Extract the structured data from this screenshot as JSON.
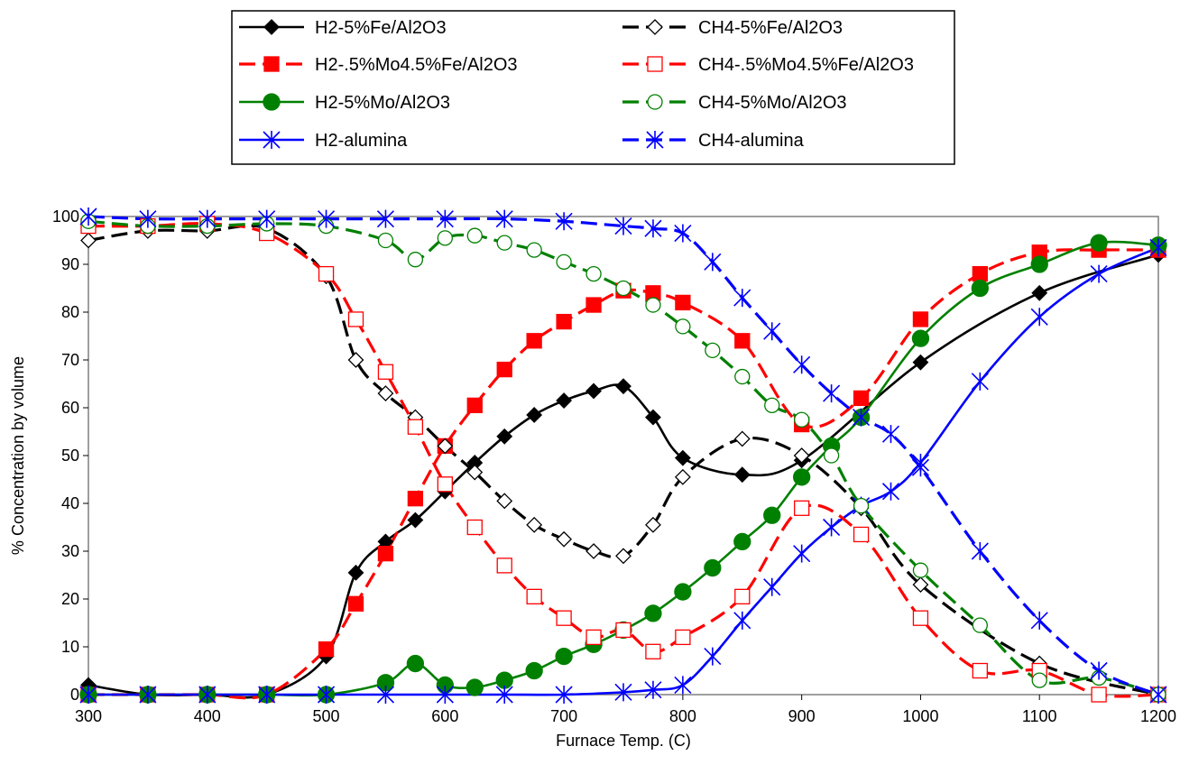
{
  "chart_data": {
    "type": "line",
    "title": "",
    "xlabel": "Furnace Temp. (C)",
    "ylabel": "% Concentration by volume",
    "xlim": [
      300,
      1200
    ],
    "ylim": [
      0,
      100
    ],
    "xticks": [
      300,
      400,
      500,
      600,
      700,
      800,
      900,
      1000,
      1100,
      1200
    ],
    "yticks": [
      0,
      10,
      20,
      30,
      40,
      50,
      60,
      70,
      80,
      90,
      100
    ],
    "grid": false,
    "legend_position": "top",
    "series": [
      {
        "name": "H2-5%Fe/Al2O3",
        "color": "#000000",
        "dash": "solid",
        "marker": "diamond-filled",
        "x": [
          300,
          350,
          400,
          450,
          500,
          525,
          550,
          575,
          600,
          625,
          650,
          675,
          700,
          725,
          750,
          775,
          800,
          850,
          900,
          1000,
          1100,
          1200
        ],
        "y": [
          2,
          0,
          0,
          0,
          8,
          25.5,
          32,
          36.5,
          42.5,
          48.5,
          54,
          58.5,
          61.5,
          63.5,
          64.5,
          58,
          49.5,
          46,
          49,
          69.5,
          84,
          92
        ]
      },
      {
        "name": "H2-.5%Mo4.5%Fe/Al2O3",
        "color": "#ff0000",
        "dash": "dashed",
        "marker": "square-filled",
        "x": [
          300,
          350,
          400,
          450,
          500,
          525,
          550,
          575,
          600,
          625,
          650,
          675,
          700,
          725,
          750,
          775,
          800,
          850,
          900,
          950,
          1000,
          1050,
          1100,
          1150,
          1200
        ],
        "y": [
          0,
          0,
          0,
          0,
          9.5,
          19,
          29.5,
          41,
          52,
          60.5,
          68,
          74,
          78,
          81.5,
          84.5,
          84,
          82,
          74,
          56.5,
          62,
          78.5,
          88,
          92.5,
          93,
          93
        ]
      },
      {
        "name": "H2-5%Mo/Al2O3",
        "color": "#008000",
        "dash": "solid",
        "marker": "circle-filled",
        "x": [
          300,
          350,
          400,
          450,
          500,
          550,
          575,
          600,
          625,
          650,
          675,
          700,
          725,
          750,
          775,
          800,
          825,
          850,
          875,
          900,
          925,
          950,
          1000,
          1050,
          1100,
          1150,
          1200
        ],
        "y": [
          0,
          0,
          0,
          0,
          0,
          2.5,
          6.5,
          2,
          1.5,
          3,
          5,
          8,
          10.5,
          13.5,
          17,
          21.5,
          26.5,
          32,
          37.5,
          45.5,
          52,
          58,
          74.5,
          85,
          90,
          94.5,
          94
        ]
      },
      {
        "name": "H2-alumina",
        "color": "#0000ff",
        "dash": "solid",
        "marker": "asterisk",
        "x": [
          300,
          350,
          400,
          450,
          500,
          550,
          600,
          650,
          700,
          750,
          775,
          800,
          825,
          850,
          875,
          900,
          925,
          950,
          975,
          1000,
          1050,
          1100,
          1150,
          1200
        ],
        "y": [
          0,
          0,
          0,
          0,
          0,
          0,
          0,
          0,
          0,
          0.5,
          1,
          2,
          8,
          15.5,
          22.5,
          29.5,
          35,
          39.5,
          42.5,
          48.5,
          65.5,
          79,
          88,
          93.5
        ]
      },
      {
        "name": "CH4-5%Fe/Al2O3",
        "color": "#000000",
        "dash": "dashed",
        "marker": "diamond-open",
        "x": [
          300,
          350,
          400,
          450,
          500,
          525,
          550,
          575,
          600,
          625,
          650,
          675,
          700,
          725,
          750,
          775,
          800,
          850,
          900,
          950,
          1000,
          1100,
          1200
        ],
        "y": [
          95,
          97,
          97,
          97.5,
          87.5,
          70,
          63,
          58,
          52,
          46.5,
          40.5,
          35.5,
          32.5,
          30,
          29,
          35.5,
          45.5,
          53.5,
          50,
          39,
          23,
          6.5,
          0
        ]
      },
      {
        "name": "CH4-.5%Mo4.5%Fe/Al2O3",
        "color": "#ff0000",
        "dash": "dashed",
        "marker": "square-open",
        "x": [
          300,
          350,
          400,
          450,
          500,
          525,
          550,
          575,
          600,
          625,
          650,
          675,
          700,
          725,
          750,
          775,
          800,
          850,
          900,
          950,
          1000,
          1050,
          1100,
          1150,
          1200
        ],
        "y": [
          98,
          98,
          98.5,
          96.5,
          88,
          78.5,
          67.5,
          56,
          44,
          35,
          27,
          20.5,
          16,
          12,
          13.5,
          9,
          12,
          20.5,
          39,
          33.5,
          16,
          5,
          5,
          0,
          0
        ]
      },
      {
        "name": "CH4-5%Mo/Al2O3",
        "color": "#008000",
        "dash": "dashed",
        "marker": "circle-open",
        "x": [
          300,
          350,
          400,
          450,
          500,
          550,
          575,
          600,
          625,
          650,
          675,
          700,
          725,
          750,
          775,
          800,
          825,
          850,
          875,
          900,
          925,
          950,
          1000,
          1050,
          1100,
          1150,
          1200
        ],
        "y": [
          99,
          98,
          98,
          98.5,
          98,
          95,
          91,
          95.5,
          96,
          94.5,
          93,
          90.5,
          88,
          85,
          81.5,
          77,
          72,
          66.5,
          60.5,
          57.5,
          50,
          39.5,
          26,
          14.5,
          3,
          3.5,
          0
        ]
      },
      {
        "name": "CH4-alumina",
        "color": "#0000ff",
        "dash": "dashed",
        "marker": "asterisk",
        "x": [
          300,
          350,
          400,
          450,
          500,
          550,
          600,
          650,
          700,
          750,
          775,
          800,
          825,
          850,
          875,
          900,
          925,
          950,
          975,
          1000,
          1050,
          1100,
          1150,
          1200
        ],
        "y": [
          100,
          99.5,
          99.5,
          99.5,
          99.5,
          99.5,
          99.5,
          99.5,
          99,
          98,
          97.5,
          96.5,
          90.5,
          83,
          76,
          69,
          63,
          58,
          54.5,
          47.5,
          30,
          15.5,
          5,
          0
        ]
      }
    ]
  }
}
